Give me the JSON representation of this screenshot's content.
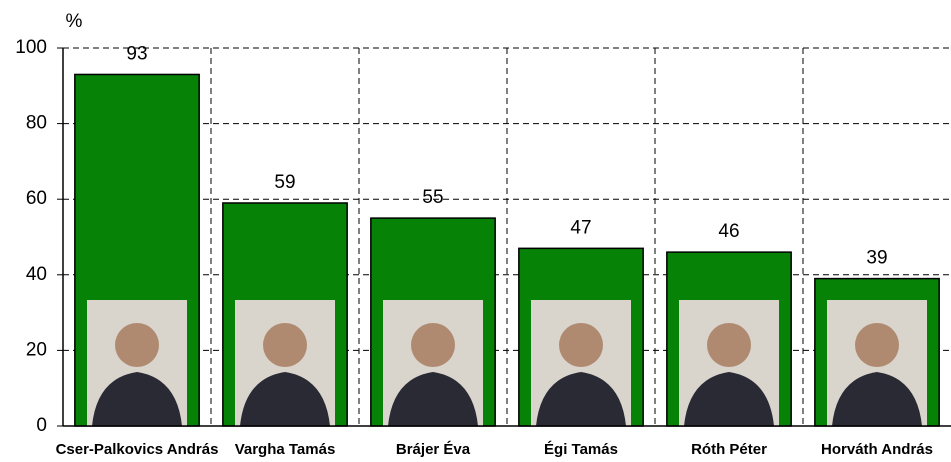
{
  "chart_data": {
    "type": "bar",
    "y_label": "%",
    "categories": [
      "Cser-Palkovics András",
      "Vargha Tamás",
      "Brájer Éva",
      "Égi Tamás",
      "Róth Péter",
      "Horváth András"
    ],
    "values": [
      93,
      59,
      55,
      47,
      46,
      39
    ],
    "color": "#068206",
    "ylim": [
      0,
      100
    ],
    "yticks": [
      0,
      20,
      40,
      60,
      80,
      100
    ],
    "grid": true
  }
}
